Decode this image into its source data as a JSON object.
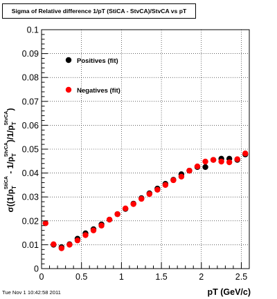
{
  "title": "Sigma of Relative difference 1/pT (StiCA - StvCA)/StvCA vs pT",
  "timestamp": "Tue Nov  1 10:42:58 2011",
  "chart_data": {
    "type": "scatter",
    "title": "Sigma of Relative difference 1/pT (StiCA - StvCA)/StvCA vs pT",
    "xlabel": "pT (GeV/c)",
    "ylabel": {
      "sigma": "σ((1/p",
      "T1": "T",
      "sup1": "StiCA",
      "dash": " - 1/p",
      "T2": "T",
      "sup2": "StvCA",
      "mid": ")/1/p",
      "T3": "T",
      "sup3": "StvCA",
      "close": ")"
    },
    "xlim": [
      0,
      2.6
    ],
    "ylim": [
      0,
      0.1
    ],
    "xticks": [
      "0",
      "0.5",
      "1",
      "1.5",
      "2",
      "2.5"
    ],
    "xtick_values": [
      0,
      0.5,
      1,
      1.5,
      2,
      2.5
    ],
    "yticks": [
      "0",
      "0.01",
      "0.02",
      "0.03",
      "0.04",
      "0.05",
      "0.06",
      "0.07",
      "0.08",
      "0.09",
      "0.1"
    ],
    "ytick_values": [
      0,
      0.01,
      0.02,
      0.03,
      0.04,
      0.05,
      0.06,
      0.07,
      0.08,
      0.09,
      0.1
    ],
    "grid": true,
    "legend_position": "top-left",
    "series": [
      {
        "name": "Positives (fit)",
        "color": "#000000",
        "x": [
          0.15,
          0.25,
          0.35,
          0.45,
          0.55,
          0.65,
          0.75,
          0.85,
          0.95,
          1.05,
          1.15,
          1.25,
          1.35,
          1.45,
          1.55,
          1.65,
          1.75,
          1.85,
          1.95,
          2.05,
          2.15,
          2.25,
          2.35,
          2.45,
          2.55
        ],
        "y": [
          0.01,
          0.009,
          0.0102,
          0.0125,
          0.0148,
          0.0165,
          0.0185,
          0.0205,
          0.0228,
          0.025,
          0.0272,
          0.0295,
          0.0315,
          0.0335,
          0.0355,
          0.0372,
          0.0395,
          0.041,
          0.0425,
          0.0425,
          0.0455,
          0.046,
          0.046,
          0.0455,
          0.0478
        ]
      },
      {
        "name": "Negatives (fit)",
        "color": "#ff0000",
        "x": [
          0.05,
          0.15,
          0.25,
          0.35,
          0.45,
          0.55,
          0.65,
          0.75,
          0.85,
          0.95,
          1.05,
          1.15,
          1.25,
          1.35,
          1.45,
          1.55,
          1.65,
          1.75,
          1.85,
          1.95,
          2.05,
          2.15,
          2.25,
          2.35,
          2.45,
          2.55
        ],
        "y": [
          0.019,
          0.0102,
          0.0085,
          0.01,
          0.0118,
          0.014,
          0.016,
          0.018,
          0.0205,
          0.0228,
          0.0252,
          0.027,
          0.0292,
          0.0312,
          0.033,
          0.035,
          0.037,
          0.0385,
          0.041,
          0.0428,
          0.0448,
          0.0455,
          0.0448,
          0.0445,
          0.0458,
          0.0482
        ]
      }
    ]
  }
}
